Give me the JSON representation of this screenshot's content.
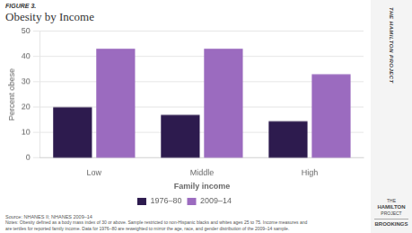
{
  "chart_data": {
    "type": "bar",
    "title": "Obesity by Income",
    "xlabel": "Family income",
    "ylabel": "Percent obese",
    "categories": [
      "Low",
      "Middle",
      "High"
    ],
    "series": [
      {
        "name": "1976–80",
        "color": "#2d1b4e",
        "values": [
          20,
          17,
          14.5
        ]
      },
      {
        "name": "2009–14",
        "color": "#9b6bbf",
        "values": [
          43,
          43,
          33
        ]
      }
    ],
    "ylim": [
      0,
      50
    ],
    "yticks": [
      0,
      10,
      20,
      30,
      40,
      50
    ],
    "grid": true,
    "legend": "bottom",
    "annotations": [
      "FIGURE 3.",
      "Source: NHANES II; NHANES 2009–14",
      "Notes: Obesity defined as a body mass index of 30 or above. Sample restricted to non-Hispanic blacks and whites ages 25 to 75. Income measures and",
      "are tertiles for reported family income. Data for 1976–80 are reweighted to mirror the age, race, and gender distribution of the 2009–14 sample.",
      "THE HAMILTON PROJECT",
      "THE",
      "HAMILTON",
      "PROJECT",
      "BROOKINGS"
    ]
  }
}
